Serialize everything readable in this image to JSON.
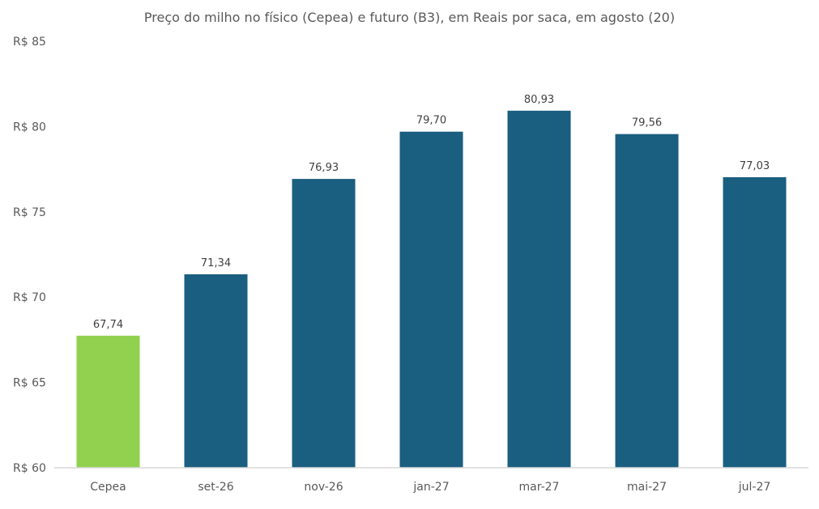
{
  "chart_data": {
    "type": "bar",
    "title": "Preço do milho no físico (Cepea) e futuro (B3), em Reais por saca, em agosto (20)",
    "categories": [
      "Cepea",
      "set-26",
      "nov-26",
      "jan-27",
      "mar-27",
      "mai-27",
      "jul-27"
    ],
    "values": [
      67.74,
      71.34,
      76.93,
      79.7,
      80.93,
      79.56,
      77.03
    ],
    "value_labels": [
      "67,74",
      "71,34",
      "76,93",
      "79,70",
      "80,93",
      "79,56",
      "77,03"
    ],
    "bar_colors": [
      "#92d050",
      "#1a5e80",
      "#1a5e80",
      "#1a5e80",
      "#1a5e80",
      "#1a5e80",
      "#1a5e80"
    ],
    "ylim": [
      60,
      85
    ],
    "yticks": [
      60,
      65,
      70,
      75,
      80,
      85
    ],
    "ytick_labels": [
      "R$ 60",
      "R$ 65",
      "R$ 70",
      "R$ 75",
      "R$ 80",
      "R$ 85"
    ],
    "xlabel": "",
    "ylabel": "",
    "grid": false,
    "legend": "none"
  }
}
